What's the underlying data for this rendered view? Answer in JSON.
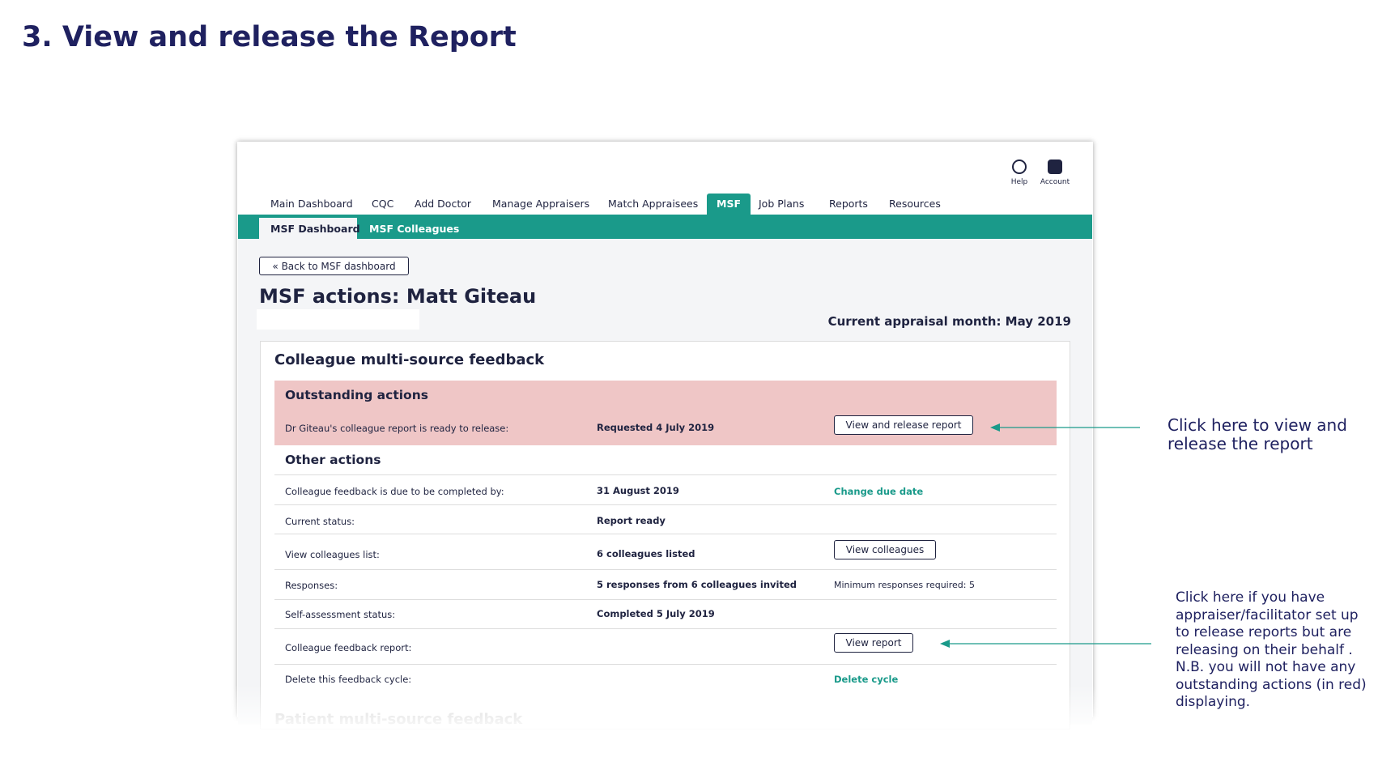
{
  "title": "3. View and release the Report",
  "header": {
    "icons": [
      "Help",
      "Account"
    ],
    "tabs": [
      "Main Dashboard",
      "CQC",
      "Add Doctor",
      "Manage Appraisers",
      "Match Appraisees",
      "MSF",
      "Job Plans",
      "Reports",
      "Resources"
    ],
    "subtabs": [
      "MSF Dashboard",
      "MSF Colleagues"
    ]
  },
  "back_button": "Back to MSF dashboard",
  "heading": "MSF actions: Matt Giteau",
  "appraisal_month": "Current appraisal month: May 2019",
  "section": {
    "title": "Colleague multi-source feedback",
    "outstanding": {
      "title": "Outstanding actions",
      "row": [
        "Dr Giteau's colleague report is ready to release:",
        "Requested 4 July 2019",
        "View and release report"
      ]
    },
    "other": {
      "title": "Other actions",
      "rows": [
        [
          "Colleague feedback is due to be completed by:",
          "31 August 2019",
          "Change due date"
        ],
        [
          "Current status:",
          "Report ready",
          ""
        ],
        [
          "View colleagues list:",
          "6 colleagues listed",
          "View colleagues"
        ],
        [
          "Responses:",
          "5 responses from 6 colleagues invited",
          "Minimum responses required: 5"
        ],
        [
          "Self-assessment status:",
          "Completed 5 July 2019",
          ""
        ],
        [
          "Colleague feedback report:",
          "",
          "View report"
        ],
        [
          "Delete this feedback cycle:",
          "",
          "Delete cycle"
        ]
      ]
    }
  },
  "next_section": "Patient multi-source feedback",
  "annotations": [
    "Click here to view and release the report",
    "Click here if you have appraiser/facilitator set up to release reports but are releasing on their behalf .  N.B. you will not have any outstanding actions (in red) displaying."
  ]
}
